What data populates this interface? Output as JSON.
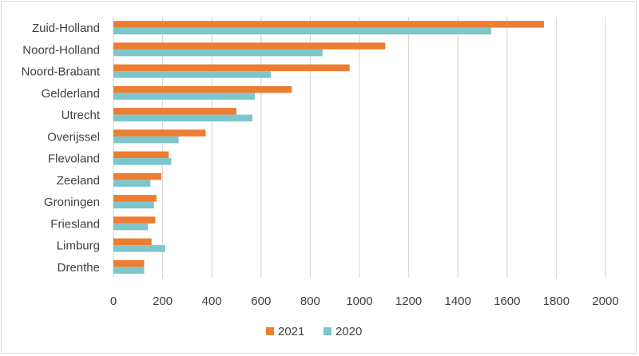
{
  "chart_data": {
    "type": "bar",
    "orientation": "horizontal",
    "categories": [
      "Zuid-Holland",
      "Noord-Holland",
      "Noord-Brabant",
      "Gelderland",
      "Utrecht",
      "Overijssel",
      "Flevoland",
      "Zeeland",
      "Groningen",
      "Friesland",
      "Limburg",
      "Drenthe"
    ],
    "series": [
      {
        "name": "2021",
        "color": "#ED7D31",
        "values": [
          1750,
          1105,
          960,
          725,
          500,
          375,
          225,
          195,
          175,
          170,
          155,
          125
        ]
      },
      {
        "name": "2020",
        "color": "#7CC6CC",
        "values": [
          1535,
          850,
          640,
          575,
          565,
          265,
          235,
          150,
          165,
          140,
          210,
          125
        ]
      }
    ],
    "xlim": [
      0,
      2000
    ],
    "xticks": [
      "0",
      "200",
      "400",
      "600",
      "800",
      "1000",
      "1200",
      "1400",
      "1600",
      "1800",
      "2000"
    ],
    "grid": true,
    "legend_position": "bottom",
    "title": "",
    "xlabel": "",
    "ylabel": ""
  }
}
